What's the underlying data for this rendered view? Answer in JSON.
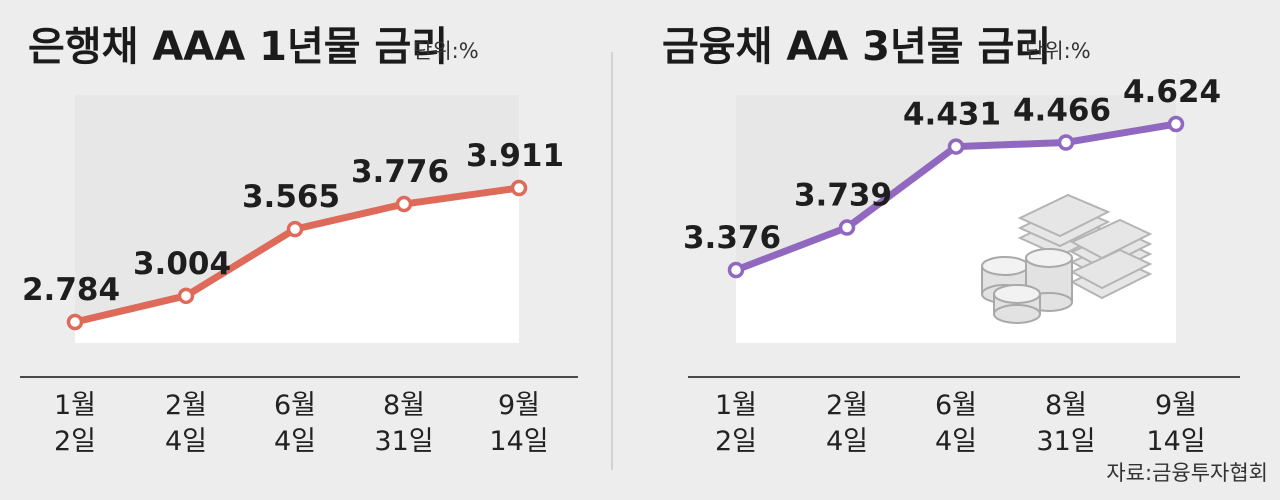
{
  "source": "자료:금융투자협회",
  "chart_data": [
    {
      "type": "area",
      "title": "은행채 AAA 1년물 금리",
      "unit": "단위:%",
      "categories": [
        [
          "1월",
          "2일"
        ],
        [
          "2월",
          "4일"
        ],
        [
          "6월",
          "4일"
        ],
        [
          "8월",
          "31일"
        ],
        [
          "9월",
          "14일"
        ]
      ],
      "values": [
        2.784,
        3.004,
        3.565,
        3.776,
        3.911
      ],
      "value_labels": [
        "2.784",
        "3.004",
        "3.565",
        "3.776",
        "3.911"
      ],
      "colors": {
        "line": "#de6b5a",
        "marker_fill": "#ffffff",
        "area": "#ffffff"
      },
      "grid": false,
      "legend": "none"
    },
    {
      "type": "area",
      "title": "금융채 AA 3년물 금리",
      "unit": "단위:%",
      "categories": [
        [
          "1월",
          "2일"
        ],
        [
          "2월",
          "4일"
        ],
        [
          "6월",
          "4일"
        ],
        [
          "8월",
          "31일"
        ],
        [
          "9월",
          "14일"
        ]
      ],
      "values": [
        3.376,
        3.739,
        4.431,
        4.466,
        4.624
      ],
      "value_labels": [
        "3.376",
        "3.739",
        "4.431",
        "4.466",
        "4.624"
      ],
      "colors": {
        "line": "#9068c0",
        "marker_fill": "#ffffff",
        "area": "#ffffff"
      },
      "grid": false,
      "legend": "none",
      "decoration_icon": "stacked-coins-and-bills-icon"
    }
  ]
}
